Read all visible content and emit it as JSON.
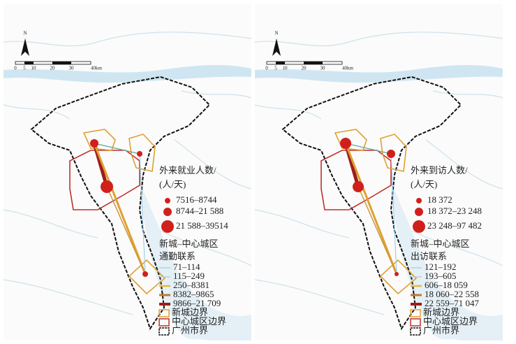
{
  "panels": [
    {
      "north": "N",
      "scale": [
        "0",
        "5",
        "10",
        "20",
        "30",
        "40km"
      ],
      "legend": {
        "point_title": [
          "外来就业人数/",
          "(人/天)"
        ],
        "points": [
          "7516–8744",
          "8744–21 588",
          "21 588–39514"
        ],
        "line_title": [
          "新城–中心城区",
          "通勤联系"
        ],
        "lines": [
          "71–114",
          "115–249",
          "250–8381",
          "8382–9865",
          "9866–21 709"
        ],
        "boundaries": [
          "新城边界",
          "中心城区边界",
          "广州市界"
        ]
      }
    },
    {
      "north": "N",
      "scale": [
        "0",
        "5",
        "10",
        "20",
        "30",
        "40km"
      ],
      "legend": {
        "point_title": [
          "外来到访人数/",
          "(人/天)"
        ],
        "points": [
          "18 372",
          "18 372–23 248",
          "23 248–97 482"
        ],
        "line_title": [
          "新城–中心城区",
          "出访联系"
        ],
        "lines": [
          "121–192",
          "193–605",
          "606–18 059",
          "18 060–22 558",
          "22 559–71 047"
        ],
        "boundaries": [
          "新城边界",
          "中心城区边界",
          "广州市界"
        ]
      }
    }
  ]
}
